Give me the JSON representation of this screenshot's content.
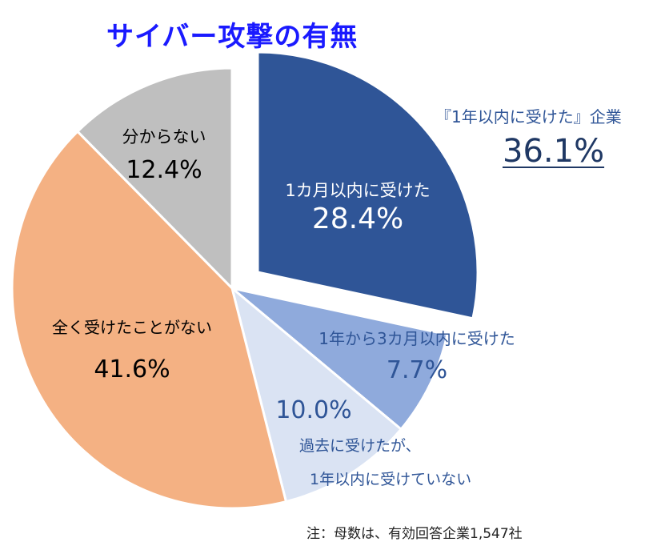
{
  "title": "サイバー攻撃の有無",
  "callout": {
    "label": "『1年以内に受けた』企業",
    "value": "36.1%"
  },
  "note": "注：母数は、有効回答企業1,547社",
  "chart_data": {
    "type": "pie",
    "slices": [
      {
        "label": "1カ月以内に受けた",
        "value": 28.4,
        "value_label": "28.4%",
        "color": "#2f5597",
        "text_color": "#ffffff",
        "exploded": true
      },
      {
        "label": "1年から3カ月以内に受けた",
        "value": 7.7,
        "value_label": "7.7%",
        "color": "#8faadc",
        "text_color": "#2f5597",
        "exploded": false
      },
      {
        "label_lines": [
          "過去に受けたが、",
          "1年以内に受けていない"
        ],
        "value": 10.0,
        "value_label": "10.0%",
        "color": "#dae3f3",
        "text_color": "#2f5597",
        "exploded": false
      },
      {
        "label": "全く受けたことがない",
        "value": 41.6,
        "value_label": "41.6%",
        "color": "#f4b183",
        "text_color": "#000000",
        "exploded": false
      },
      {
        "label": "分からない",
        "value": 12.4,
        "value_label": "12.4%",
        "color": "#bfbfbf",
        "text_color": "#000000",
        "exploded": false
      }
    ]
  }
}
